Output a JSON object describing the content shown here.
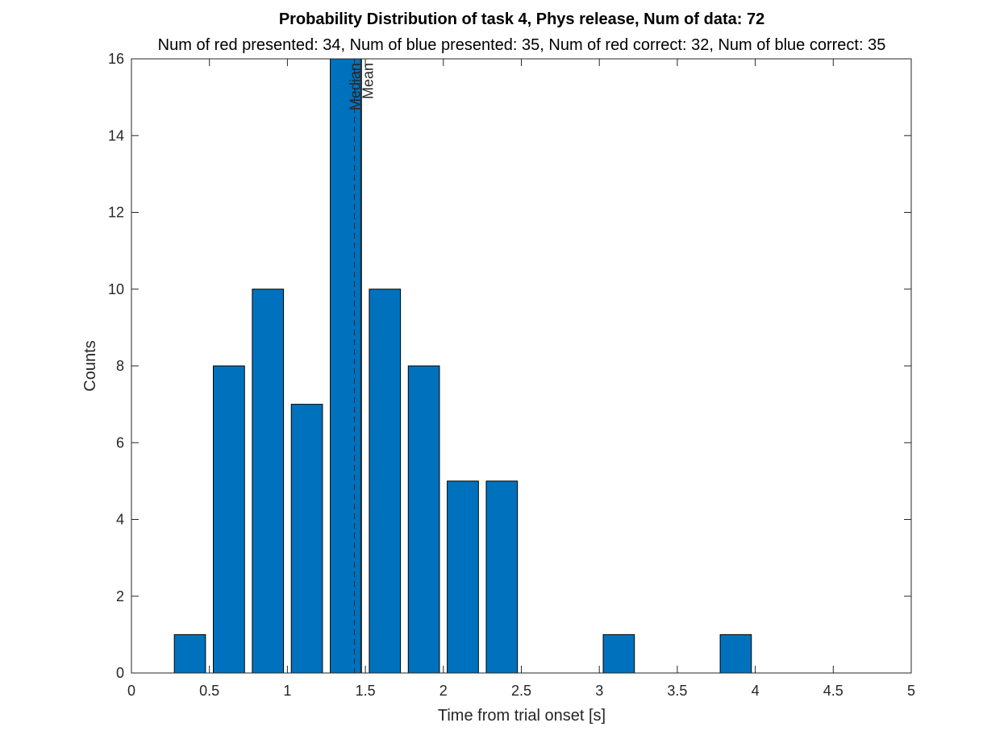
{
  "chart_data": {
    "type": "bar",
    "title": "Probability Distribution of task 4, Phys release, Num of data: 72",
    "subtitle": "Num of red presented: 34, Num of blue presented: 35, Num of red correct: 32, Num of blue correct: 35",
    "xlabel": "Time from trial onset [s]",
    "ylabel": "Counts",
    "xlim": [
      0,
      5
    ],
    "ylim": [
      0,
      16
    ],
    "xticks": [
      "0",
      "0.5",
      "1",
      "1.5",
      "2",
      "2.5",
      "3",
      "3.5",
      "4",
      "4.5",
      "5"
    ],
    "yticks": [
      "0",
      "2",
      "4",
      "6",
      "8",
      "10",
      "12",
      "14",
      "16"
    ],
    "bin_width": 0.25,
    "x": [
      0.375,
      0.625,
      0.875,
      1.125,
      1.375,
      1.625,
      1.875,
      2.125,
      2.375,
      3.125,
      3.875
    ],
    "values": [
      1,
      8,
      10,
      7,
      16,
      10,
      8,
      5,
      5,
      1,
      1
    ],
    "bar_color": "#0072BD",
    "reference_lines": [
      {
        "label": "Median",
        "x": 1.43,
        "style": "dashed"
      },
      {
        "label": "Mean",
        "x": 1.47,
        "style": "solid"
      }
    ],
    "grid": false,
    "box": true
  }
}
